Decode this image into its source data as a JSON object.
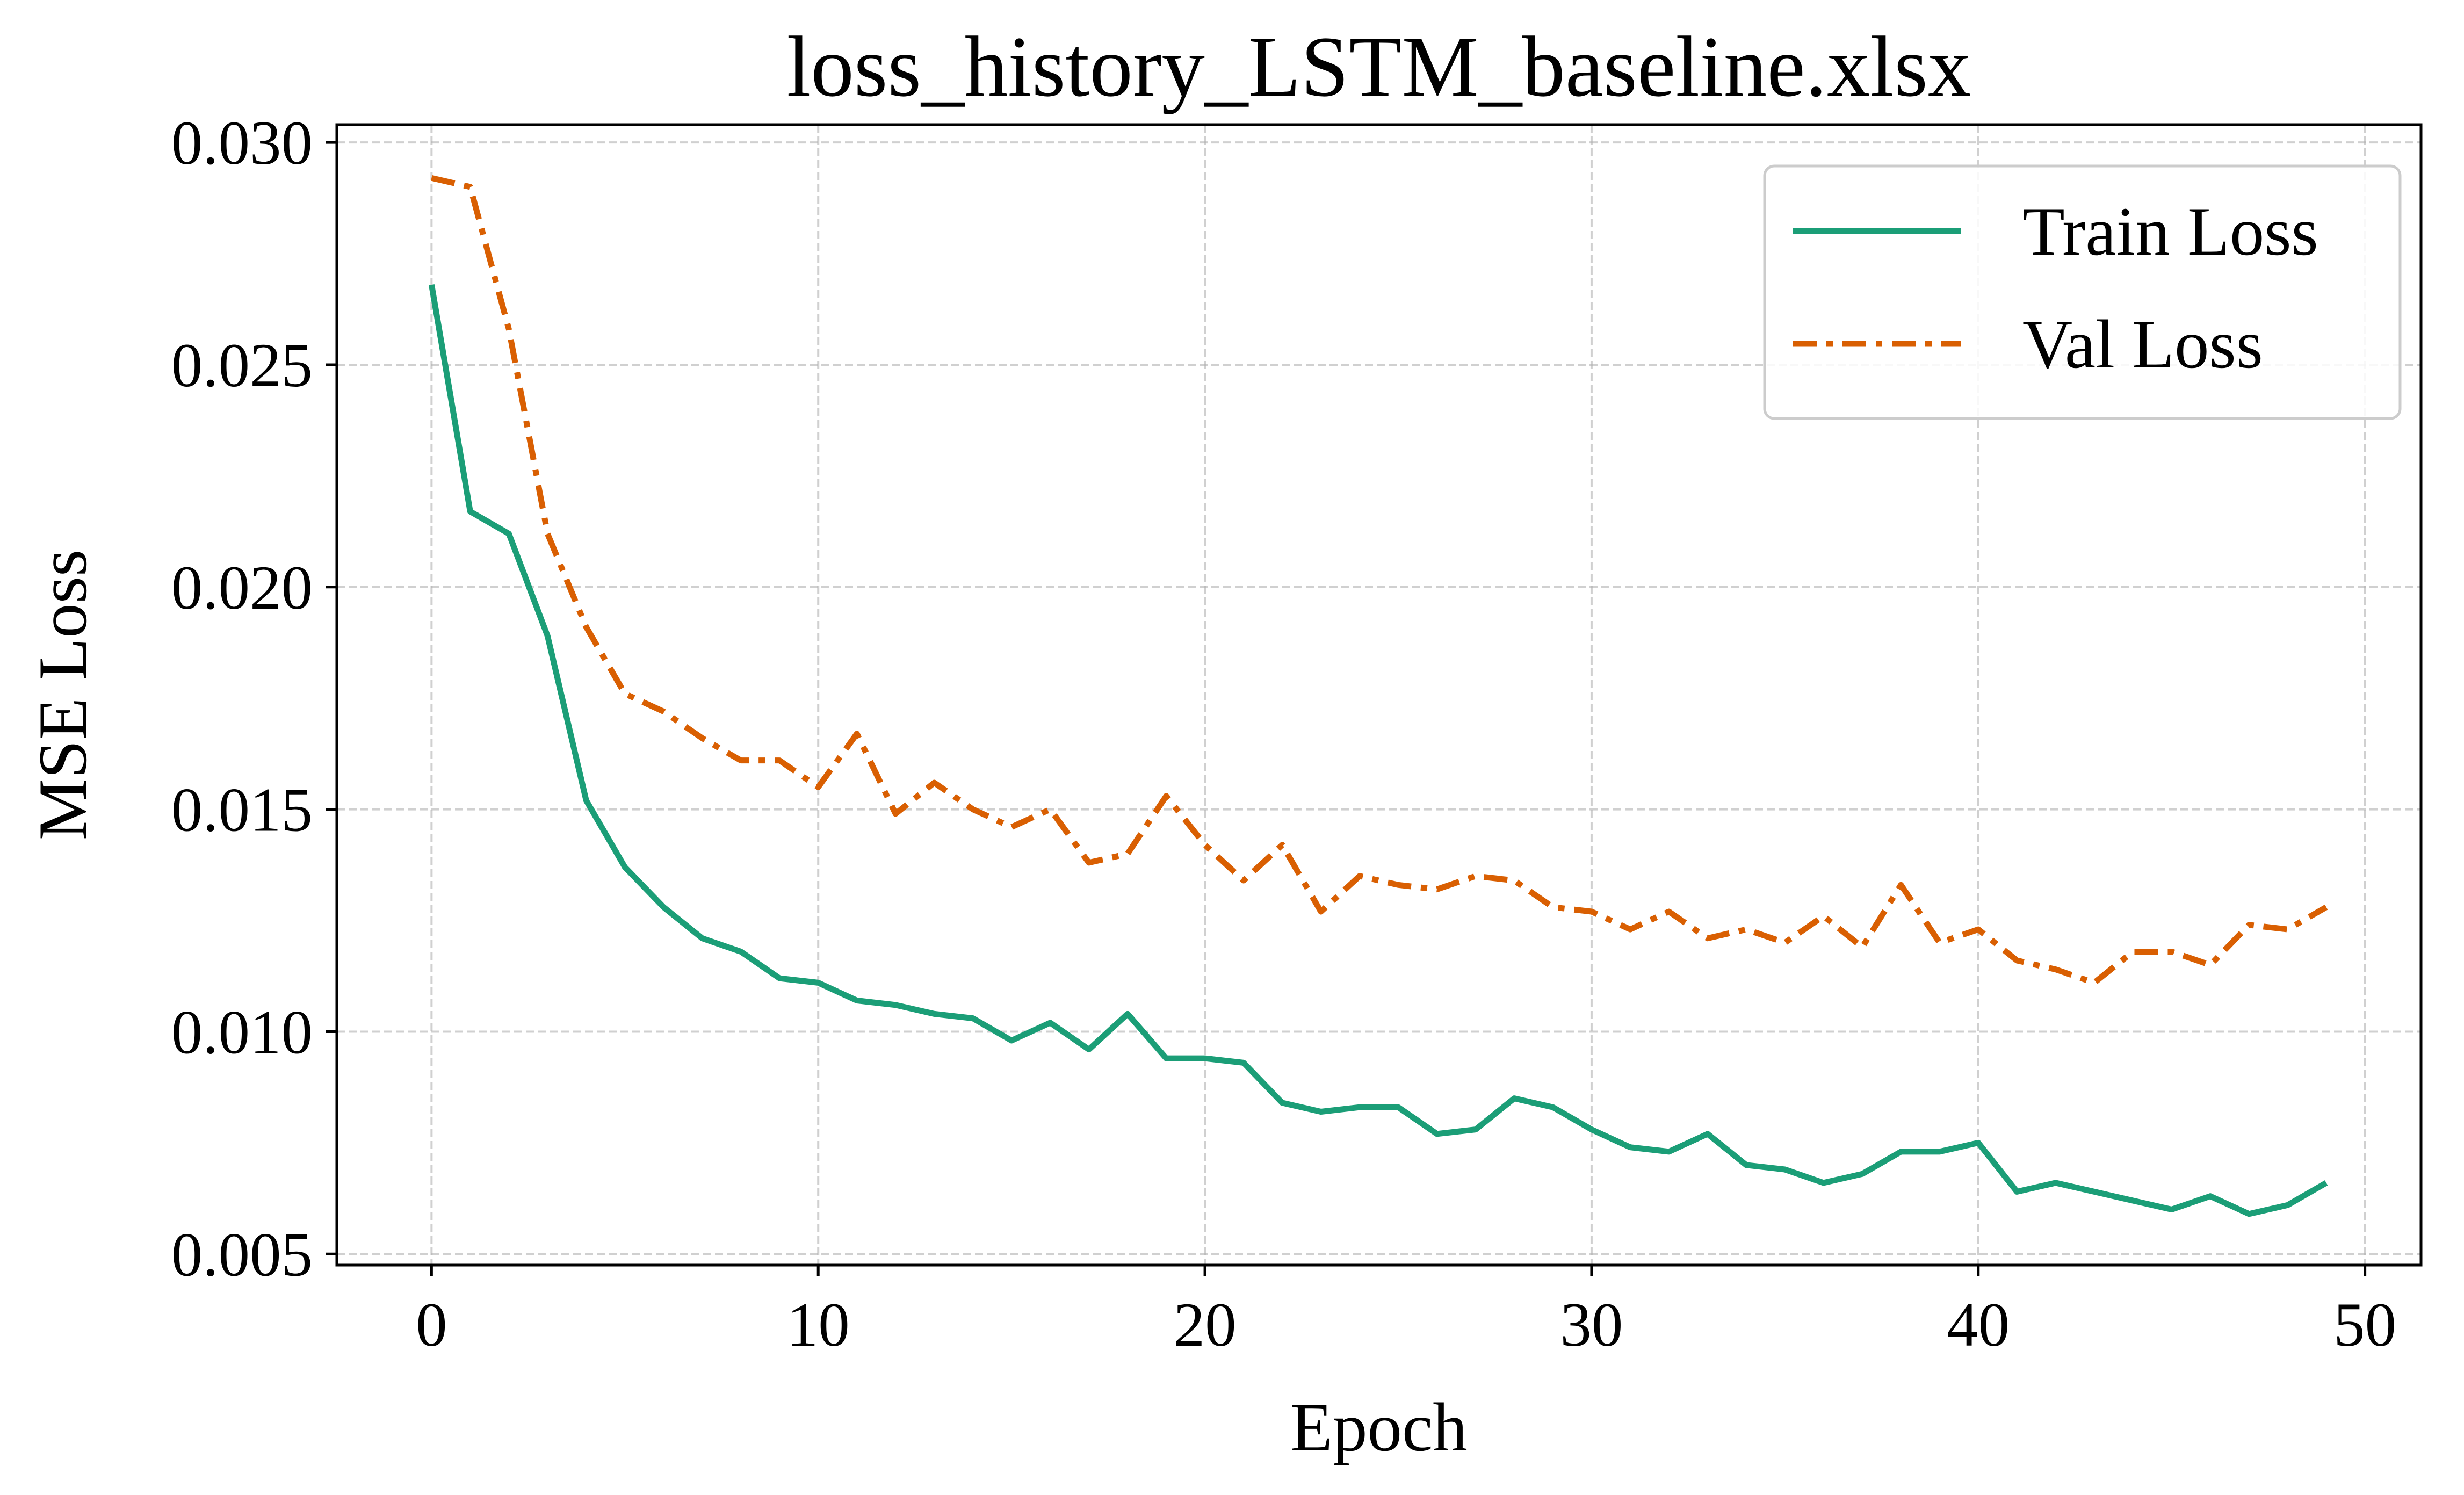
{
  "chart_data": {
    "type": "line",
    "title": "loss_history_LSTM_baseline.xlsx",
    "xlabel": "Epoch",
    "ylabel": "MSE Loss",
    "xlim": [
      -2.45,
      51.45
    ],
    "ylim": [
      0.00475,
      0.0304
    ],
    "x_ticks": [
      0,
      10,
      20,
      30,
      40,
      50
    ],
    "x_tick_labels": [
      "0",
      "10",
      "20",
      "30",
      "40",
      "50"
    ],
    "y_ticks": [
      0.005,
      0.01,
      0.015,
      0.02,
      0.025,
      0.03
    ],
    "y_tick_labels": [
      "0.005",
      "0.010",
      "0.015",
      "0.020",
      "0.025",
      "0.030"
    ],
    "grid": true,
    "legend_position": "upper right",
    "x": [
      0,
      1,
      2,
      3,
      4,
      5,
      6,
      7,
      8,
      9,
      10,
      11,
      12,
      13,
      14,
      15,
      16,
      17,
      18,
      19,
      20,
      21,
      22,
      23,
      24,
      25,
      26,
      27,
      28,
      29,
      30,
      31,
      32,
      33,
      34,
      35,
      36,
      37,
      38,
      39,
      40,
      41,
      42,
      43,
      44,
      45,
      46,
      47,
      48,
      49
    ],
    "series": [
      {
        "name": "Train Loss",
        "color": "#1b9e77",
        "linestyle": "solid",
        "values": [
          0.0268,
          0.0217,
          0.0212,
          0.0189,
          0.0152,
          0.0137,
          0.0128,
          0.0121,
          0.0118,
          0.0112,
          0.0111,
          0.0107,
          0.0106,
          0.0104,
          0.0103,
          0.0098,
          0.0102,
          0.0096,
          0.0104,
          0.0094,
          0.0094,
          0.0093,
          0.0084,
          0.0082,
          0.0083,
          0.0083,
          0.0077,
          0.0078,
          0.0085,
          0.0083,
          0.0078,
          0.0074,
          0.0073,
          0.0077,
          0.007,
          0.0069,
          0.0066,
          0.0068,
          0.0073,
          0.0073,
          0.0075,
          0.0064,
          0.0066,
          0.0064,
          0.0062,
          0.006,
          0.0063,
          0.0059,
          0.0061,
          0.0066
        ]
      },
      {
        "name": "Val Loss",
        "color": "#d95f02",
        "linestyle": "dashdot",
        "values": [
          0.0292,
          0.029,
          0.0258,
          0.0212,
          0.0191,
          0.0176,
          0.0172,
          0.0166,
          0.0161,
          0.0161,
          0.0155,
          0.0167,
          0.0149,
          0.0156,
          0.015,
          0.0146,
          0.015,
          0.0138,
          0.014,
          0.0153,
          0.0142,
          0.0134,
          0.0142,
          0.0127,
          0.0135,
          0.0133,
          0.0132,
          0.0135,
          0.0134,
          0.0128,
          0.0127,
          0.0123,
          0.0127,
          0.0121,
          0.0123,
          0.012,
          0.0126,
          0.0119,
          0.0133,
          0.012,
          0.0123,
          0.0116,
          0.0114,
          0.0111,
          0.0118,
          0.0118,
          0.0115,
          0.0124,
          0.0123,
          0.0128
        ]
      }
    ]
  }
}
